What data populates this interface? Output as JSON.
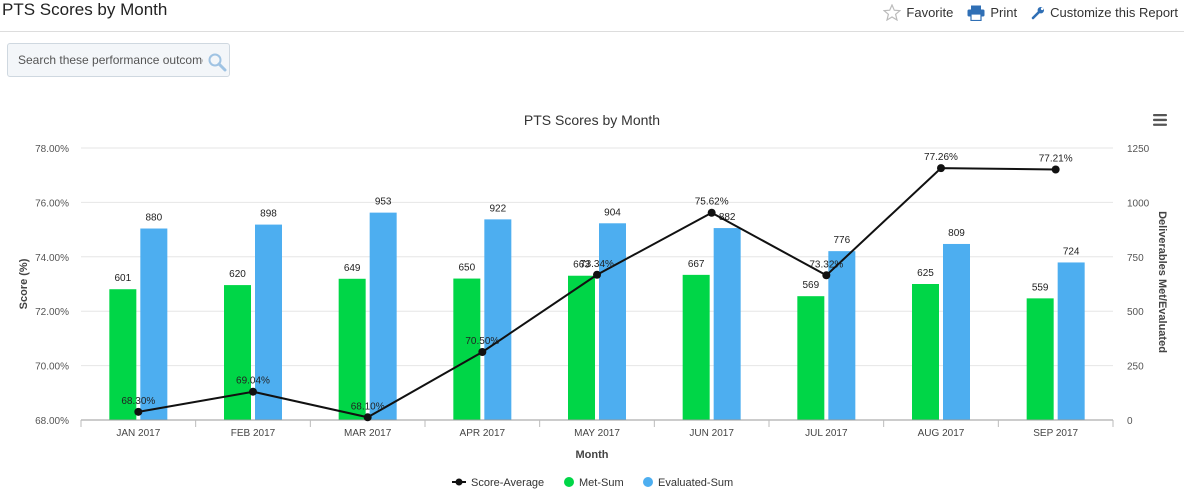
{
  "page": {
    "title": "PTS Scores by Month"
  },
  "toolbar": {
    "favorite_label": "Favorite",
    "print_label": "Print",
    "customize_label": "Customize this Report"
  },
  "search": {
    "placeholder": "Search these performance outcomes",
    "value": ""
  },
  "icons": {
    "favorite": "star-icon",
    "print": "printer-icon",
    "customize": "wrench-icon",
    "search": "search-icon",
    "menu": "hamburger-menu-icon"
  },
  "colors": {
    "met": "#00d647",
    "evaluated": "#4daef0",
    "line": "#111111"
  },
  "chart_data": {
    "type": "bar",
    "title": "PTS Scores by Month",
    "xlabel": "Month",
    "ylabel": "Score (%)",
    "y2label": "Deliverables Met/Evaluated",
    "categories": [
      "JAN 2017",
      "FEB 2017",
      "MAR 2017",
      "APR 2017",
      "MAY 2017",
      "JUN 2017",
      "JUL 2017",
      "AUG 2017",
      "SEP 2017"
    ],
    "ylim": [
      68,
      78
    ],
    "yticks": [
      "68.00%",
      "70.00%",
      "72.00%",
      "74.00%",
      "76.00%",
      "78.00%"
    ],
    "y2lim": [
      0,
      1250
    ],
    "y2ticks": [
      "0",
      "250",
      "500",
      "750",
      "1000",
      "1250"
    ],
    "legend_position": "bottom",
    "series": [
      {
        "name": "Score-Average",
        "type": "line",
        "axis": "left",
        "values": [
          68.3,
          69.04,
          68.1,
          70.5,
          73.34,
          75.62,
          73.32,
          77.26,
          77.21
        ],
        "labels": [
          "68.30%",
          "69.04%",
          "68.10%",
          "70.50%",
          "73.34%",
          "75.62%",
          "73.32%",
          "77.26%",
          "77.21%"
        ]
      },
      {
        "name": "Met-Sum",
        "type": "bar",
        "axis": "right",
        "values": [
          601,
          620,
          649,
          650,
          663,
          667,
          569,
          625,
          559
        ],
        "labels": [
          "601",
          "620",
          "649",
          "650",
          "663",
          "667",
          "569",
          "625",
          "559"
        ]
      },
      {
        "name": "Evaluated-Sum",
        "type": "bar",
        "axis": "right",
        "values": [
          880,
          898,
          953,
          922,
          904,
          882,
          776,
          809,
          724
        ],
        "labels": [
          "880",
          "898",
          "953",
          "922",
          "904",
          "882",
          "776",
          "809",
          "724"
        ]
      }
    ]
  }
}
